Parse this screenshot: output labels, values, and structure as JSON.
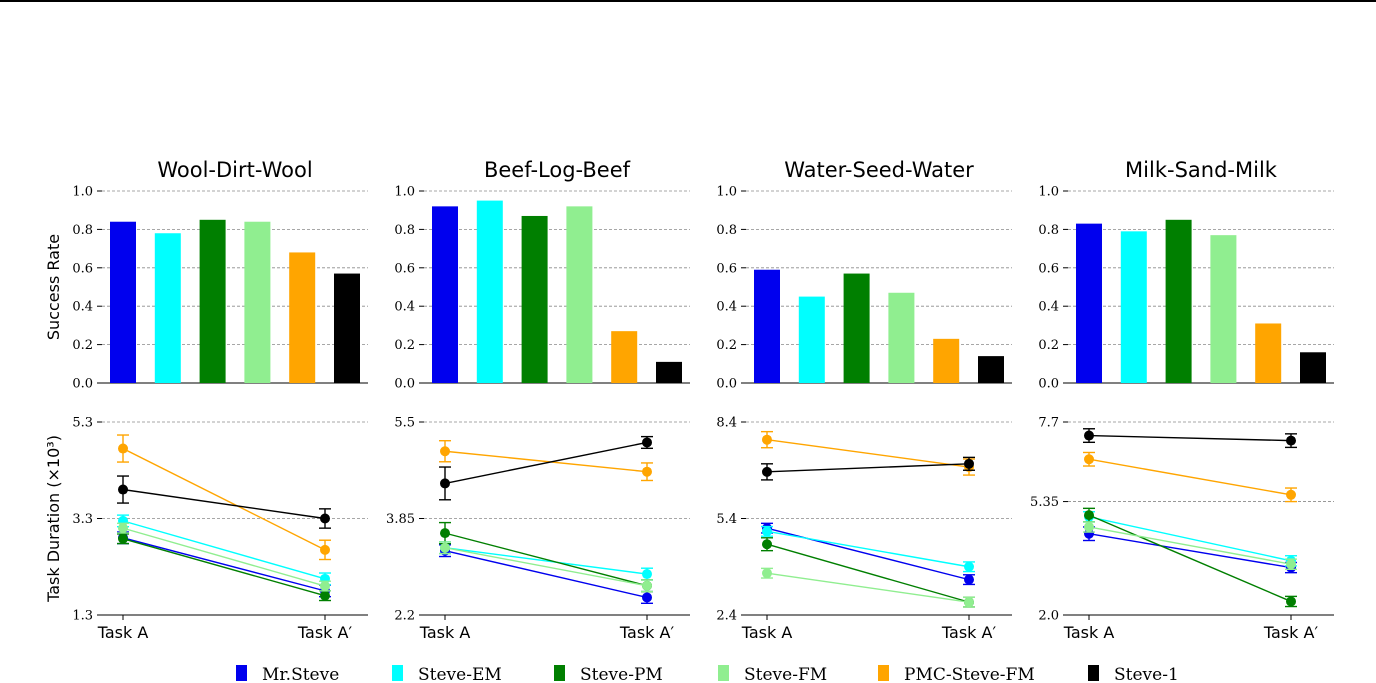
{
  "chart_data": [
    {
      "type": "bar",
      "title": "Wool-Dirt-Wool",
      "ylabel": "Success Rate",
      "ylim": [
        0,
        1
      ],
      "yticks": [
        "0.0",
        "0.2",
        "0.4",
        "0.6",
        "0.8",
        "1.0"
      ],
      "categories": [
        "Mr.Steve",
        "Steve-EM",
        "Steve-PM",
        "Steve-FM",
        "PMC-Steve-FM",
        "Steve-1"
      ],
      "values": [
        0.84,
        0.78,
        0.85,
        0.84,
        0.68,
        0.57
      ],
      "grid": "horizontal"
    },
    {
      "type": "bar",
      "title": "Beef-Log-Beef",
      "ylim": [
        0,
        1
      ],
      "yticks": [
        "0.0",
        "0.2",
        "0.4",
        "0.6",
        "0.8",
        "1.0"
      ],
      "categories": [
        "Mr.Steve",
        "Steve-EM",
        "Steve-PM",
        "Steve-FM",
        "PMC-Steve-FM",
        "Steve-1"
      ],
      "values": [
        0.92,
        0.95,
        0.87,
        0.92,
        0.27,
        0.11
      ],
      "grid": "horizontal"
    },
    {
      "type": "bar",
      "title": "Water-Seed-Water",
      "ylim": [
        0,
        1
      ],
      "yticks": [
        "0.0",
        "0.2",
        "0.4",
        "0.6",
        "0.8",
        "1.0"
      ],
      "categories": [
        "Mr.Steve",
        "Steve-EM",
        "Steve-PM",
        "Steve-FM",
        "PMC-Steve-FM",
        "Steve-1"
      ],
      "values": [
        0.59,
        0.45,
        0.57,
        0.47,
        0.23,
        0.14
      ],
      "grid": "horizontal"
    },
    {
      "type": "bar",
      "title": "Milk-Sand-Milk",
      "ylim": [
        0,
        1
      ],
      "yticks": [
        "0.0",
        "0.2",
        "0.4",
        "0.6",
        "0.8",
        "1.0"
      ],
      "categories": [
        "Mr.Steve",
        "Steve-EM",
        "Steve-PM",
        "Steve-FM",
        "PMC-Steve-FM",
        "Steve-1"
      ],
      "values": [
        0.83,
        0.79,
        0.85,
        0.77,
        0.31,
        0.16
      ],
      "grid": "horizontal"
    },
    {
      "type": "line",
      "ylabel": "Task Duration (×10³)",
      "x": [
        "Task A",
        "Task A′"
      ],
      "ylim": [
        1.3,
        5.3
      ],
      "yticks": [
        "1.3",
        "3.3",
        "5.3"
      ],
      "series": [
        {
          "name": "Mr.Steve",
          "values": [
            2.9,
            1.8
          ],
          "err": [
            0.12,
            0.12
          ]
        },
        {
          "name": "Steve-EM",
          "values": [
            3.25,
            2.05
          ],
          "err": [
            0.12,
            0.12
          ]
        },
        {
          "name": "Steve-PM",
          "values": [
            2.88,
            1.7
          ],
          "err": [
            0.1,
            0.1
          ]
        },
        {
          "name": "Steve-FM",
          "values": [
            3.1,
            1.9
          ],
          "err": [
            0.1,
            0.1
          ]
        },
        {
          "name": "PMC-Steve-FM",
          "values": [
            4.75,
            2.65
          ],
          "err": [
            0.28,
            0.2
          ]
        },
        {
          "name": "Steve-1",
          "values": [
            3.9,
            3.3
          ],
          "err": [
            0.28,
            0.2
          ]
        }
      ],
      "grid": "horizontal"
    },
    {
      "type": "line",
      "x": [
        "Task A",
        "Task A′"
      ],
      "ylim": [
        2.2,
        5.5
      ],
      "yticks": [
        "2.2",
        "3.85",
        "5.5"
      ],
      "series": [
        {
          "name": "Mr.Steve",
          "values": [
            3.3,
            2.5
          ],
          "err": [
            0.1,
            0.1
          ]
        },
        {
          "name": "Steve-EM",
          "values": [
            3.35,
            2.9
          ],
          "err": [
            0.1,
            0.1
          ]
        },
        {
          "name": "Steve-PM",
          "values": [
            3.6,
            2.7
          ],
          "err": [
            0.18,
            0.1
          ]
        },
        {
          "name": "Steve-FM",
          "values": [
            3.35,
            2.7
          ],
          "err": [
            0.1,
            0.1
          ]
        },
        {
          "name": "PMC-Steve-FM",
          "values": [
            5.0,
            4.65
          ],
          "err": [
            0.18,
            0.15
          ]
        },
        {
          "name": "Steve-1",
          "values": [
            4.45,
            5.15
          ],
          "err": [
            0.28,
            0.1
          ]
        }
      ],
      "grid": "horizontal"
    },
    {
      "type": "line",
      "x": [
        "Task A",
        "Task A′"
      ],
      "ylim": [
        2.4,
        8.4
      ],
      "yticks": [
        "2.4",
        "5.4",
        "8.4"
      ],
      "series": [
        {
          "name": "Mr.Steve",
          "values": [
            5.1,
            3.5
          ],
          "err": [
            0.15,
            0.15
          ]
        },
        {
          "name": "Steve-EM",
          "values": [
            5.0,
            3.9
          ],
          "err": [
            0.15,
            0.15
          ]
        },
        {
          "name": "Steve-PM",
          "values": [
            4.6,
            2.8
          ],
          "err": [
            0.2,
            0.15
          ]
        },
        {
          "name": "Steve-FM",
          "values": [
            3.7,
            2.8
          ],
          "err": [
            0.15,
            0.15
          ]
        },
        {
          "name": "PMC-Steve-FM",
          "values": [
            7.85,
            7.0
          ],
          "err": [
            0.25,
            0.25
          ]
        },
        {
          "name": "Steve-1",
          "values": [
            6.85,
            7.1
          ],
          "err": [
            0.25,
            0.2
          ]
        }
      ],
      "grid": "horizontal"
    },
    {
      "type": "line",
      "x": [
        "Task A",
        "Task A′"
      ],
      "ylim": [
        2.0,
        7.7
      ],
      "yticks": [
        "2.0",
        "5.35",
        "7.7"
      ],
      "series": [
        {
          "name": "Mr.Steve",
          "values": [
            4.4,
            3.4
          ],
          "err": [
            0.2,
            0.15
          ]
        },
        {
          "name": "Steve-EM",
          "values": [
            4.9,
            3.6
          ],
          "err": [
            0.15,
            0.15
          ]
        },
        {
          "name": "Steve-PM",
          "values": [
            4.95,
            2.4
          ],
          "err": [
            0.2,
            0.15
          ]
        },
        {
          "name": "Steve-FM",
          "values": [
            4.6,
            3.5
          ],
          "err": [
            0.15,
            0.15
          ]
        },
        {
          "name": "PMC-Steve-FM",
          "values": [
            6.6,
            5.55
          ],
          "err": [
            0.2,
            0.2
          ]
        },
        {
          "name": "Steve-1",
          "values": [
            7.3,
            7.15
          ],
          "err": [
            0.2,
            0.2
          ]
        }
      ],
      "grid": "horizontal"
    }
  ],
  "legend": {
    "placement": "bottom",
    "entries": [
      {
        "label": "Mr.Steve",
        "color": "#0000ee"
      },
      {
        "label": "Steve-EM",
        "color": "#00ffff"
      },
      {
        "label": "Steve-PM",
        "color": "#007f00"
      },
      {
        "label": "Steve-FM",
        "color": "#90ee90"
      },
      {
        "label": "PMC-Steve-FM",
        "color": "#ffa500"
      },
      {
        "label": "Steve-1",
        "color": "#000000"
      }
    ]
  }
}
